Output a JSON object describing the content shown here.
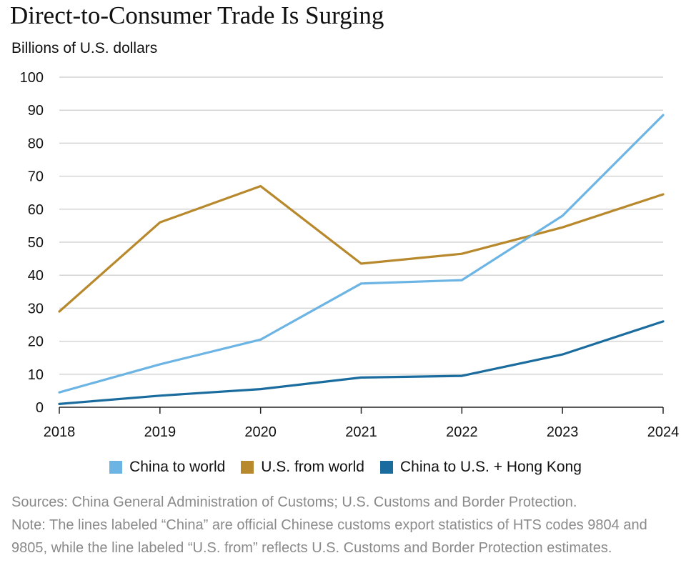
{
  "chart_data": {
    "type": "line",
    "title": "Direct-to-Consumer Trade Is Surging",
    "ylabel": "Billions of U.S. dollars",
    "xlabel": "",
    "ylim": [
      0,
      100
    ],
    "yticks": [
      0,
      10,
      20,
      30,
      40,
      50,
      60,
      70,
      80,
      90,
      100
    ],
    "x": [
      "2018",
      "2019",
      "2020",
      "2021",
      "2022",
      "2023",
      "2024"
    ],
    "grid": true,
    "legend_position": "bottom-center",
    "series": [
      {
        "name": "China to world",
        "color": "#6cb4e4",
        "values": [
          4.5,
          13,
          20.5,
          37.5,
          38.5,
          58,
          88.5
        ]
      },
      {
        "name": "U.S. from world",
        "color": "#b8892c",
        "values": [
          29,
          56,
          67,
          43.5,
          46.5,
          54.5,
          64.5
        ]
      },
      {
        "name": "China to U.S. + Hong Kong",
        "color": "#1a6c9e",
        "values": [
          1,
          3.5,
          5.5,
          9,
          9.5,
          16,
          26
        ]
      }
    ]
  },
  "notes": {
    "sources": "Sources: China General Administration of Customs; U.S. Customs and Border Protection.",
    "note": "Note: The lines labeled “China” are official Chinese customs export statistics of HTS codes 9804 and 9805, while the line labeled “U.S. from” reflects U.S. Customs and Border Protection estimates."
  }
}
